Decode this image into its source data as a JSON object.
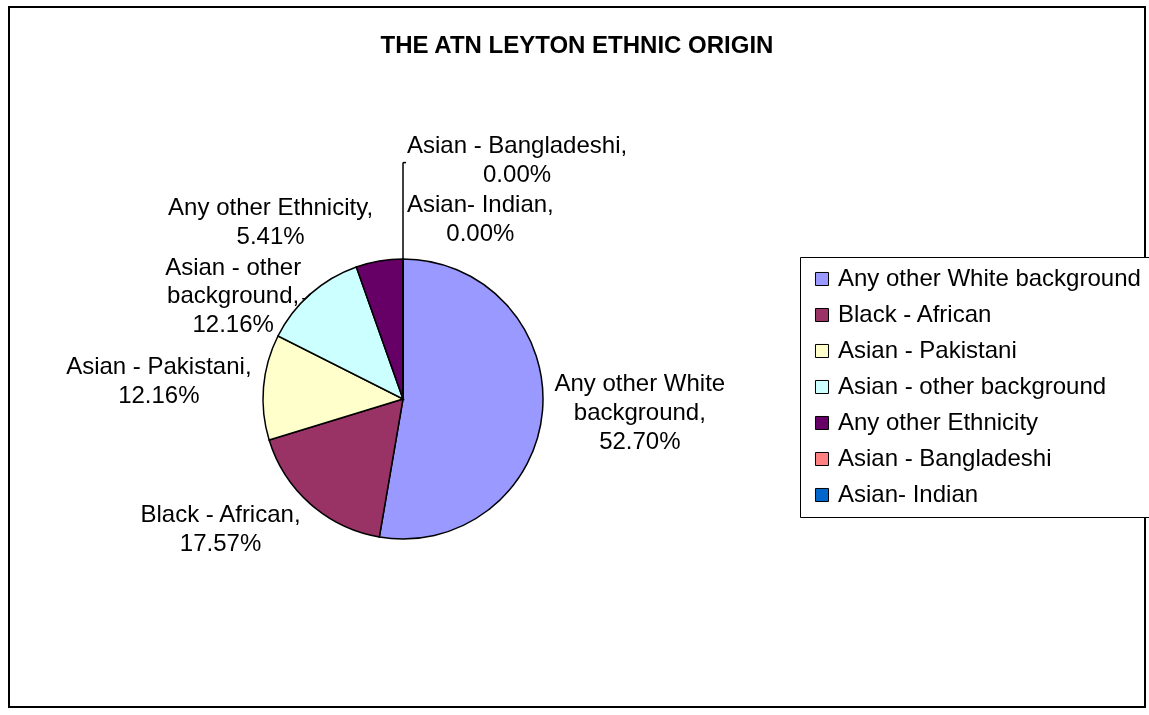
{
  "chart_data": {
    "type": "pie",
    "title": "THE ATN LEYTON ETHNIC ORIGIN",
    "categories": [
      "Any other White background",
      "Black - African",
      "Asian - Pakistani",
      "Asian - other background",
      "Any other Ethnicity",
      "Asian - Bangladeshi",
      "Asian- Indian"
    ],
    "values": [
      52.7,
      17.57,
      12.16,
      12.16,
      5.41,
      0.0,
      0.0
    ],
    "colors": [
      "#9999ff",
      "#993366",
      "#ffffcc",
      "#ccffff",
      "#660066",
      "#ff8080",
      "#0066cc"
    ],
    "value_labels": [
      "Any other White background, 52.70%",
      "Black - African, 17.57%",
      "Asian - Pakistani, 12.16%",
      "Asian - other background, 12.16%",
      "Any other Ethnicity, 5.41%",
      "Asian - Bangladeshi, 0.00%",
      "Asian- Indian, 0.00%"
    ],
    "legend": "right"
  }
}
